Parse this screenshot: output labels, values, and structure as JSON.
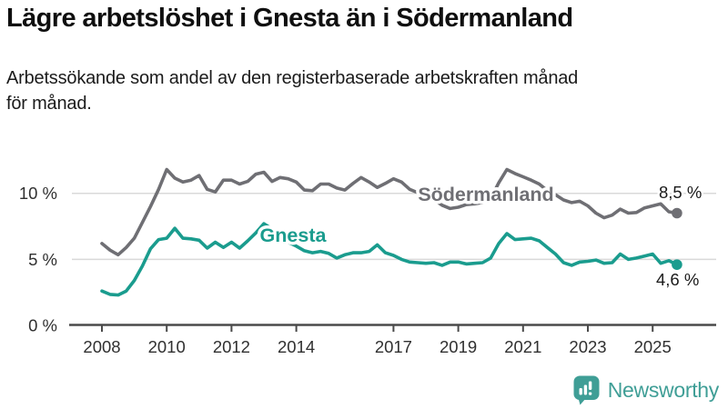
{
  "header": {
    "title": "Lägre arbetslöshet i Gnesta än i Södermanland",
    "subtitle_lines": {
      "0": "Arbetssökande som andel av den registerbaserade arbetskraften månad",
      "1": "för månad."
    }
  },
  "chart_data": {
    "type": "line",
    "title": "Lägre arbetslöshet i Gnesta än i Södermanland",
    "subtitle": "Arbetssökande som andel av den registerbaserade arbetskraften månad för månad.",
    "unit": "%",
    "x_start": 2008.0,
    "x_step": 0.25,
    "xlim": [
      2007.0,
      2027.0
    ],
    "ylim": [
      0,
      12.5
    ],
    "grid": "horizontal-only",
    "gridline_values": [
      5,
      10
    ],
    "x_tick_years": [
      2008,
      2010,
      2012,
      2014,
      2017,
      2019,
      2021,
      2023,
      2025
    ],
    "y_ticks": [
      {
        "value": 0,
        "label": "0 %"
      },
      {
        "value": 5,
        "label": "5 %"
      },
      {
        "value": 10,
        "label": "10 %"
      }
    ],
    "legend_position": "inline-labels-on-lines",
    "series": [
      {
        "name": "Södermanland",
        "color": "#6f6f74",
        "end_label": "8,5 %",
        "end_value": 8.5,
        "values": [
          6.2,
          5.7,
          5.35,
          5.9,
          6.6,
          7.8,
          9.0,
          10.3,
          11.8,
          11.15,
          10.85,
          11.0,
          11.35,
          10.3,
          10.1,
          11.0,
          11.0,
          10.7,
          10.9,
          11.45,
          11.6,
          10.9,
          11.2,
          11.1,
          10.85,
          10.25,
          10.2,
          10.7,
          10.7,
          10.4,
          10.25,
          10.75,
          11.2,
          10.85,
          10.45,
          10.75,
          11.1,
          10.85,
          10.3,
          10.05,
          9.9,
          9.5,
          9.1,
          8.85,
          8.95,
          9.15,
          9.2,
          9.3,
          9.6,
          10.8,
          11.8,
          11.5,
          11.25,
          11.0,
          10.7,
          10.2,
          9.9,
          9.5,
          9.3,
          9.4,
          9.05,
          8.5,
          8.15,
          8.35,
          8.8,
          8.5,
          8.55,
          8.9,
          9.05,
          9.2,
          8.6,
          8.5
        ]
      },
      {
        "name": "Gnesta",
        "color": "#1a9c8e",
        "end_label": "4,6 %",
        "end_value": 4.6,
        "values": [
          2.6,
          2.35,
          2.3,
          2.6,
          3.4,
          4.5,
          5.8,
          6.5,
          6.6,
          7.35,
          6.6,
          6.55,
          6.45,
          5.85,
          6.3,
          5.9,
          6.3,
          5.85,
          6.4,
          7.0,
          7.7,
          7.3,
          6.9,
          6.3,
          6.0,
          5.65,
          5.5,
          5.6,
          5.45,
          5.1,
          5.35,
          5.5,
          5.5,
          5.6,
          6.1,
          5.5,
          5.3,
          5.0,
          4.8,
          4.75,
          4.7,
          4.75,
          4.55,
          4.8,
          4.8,
          4.65,
          4.7,
          4.75,
          5.1,
          6.2,
          6.95,
          6.5,
          6.55,
          6.6,
          6.4,
          5.9,
          5.4,
          4.75,
          4.55,
          4.8,
          4.85,
          4.95,
          4.7,
          4.75,
          5.4,
          5.0,
          5.1,
          5.25,
          5.4,
          4.7,
          4.9,
          4.6
        ]
      }
    ],
    "colors": {
      "axis": "#4a4a4a",
      "gridline": "#d9d9d9",
      "tick_label": "#303030",
      "value_label": "#1a1a1a"
    }
  },
  "footer": {
    "logo_text": "Newsworthy",
    "logo_icon": "bar-chart-speech-bubble-icon",
    "logo_color": "#3f9e96"
  }
}
